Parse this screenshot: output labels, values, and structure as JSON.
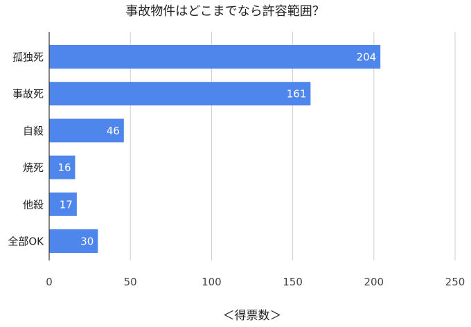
{
  "chart_data": {
    "type": "bar",
    "orientation": "horizontal",
    "title": "事故物件はどこまでなら許容範囲？",
    "xlabel": "＜得票数＞",
    "ylabel": "",
    "categories": [
      "孤独死",
      "事故死",
      "自殺",
      "焼死",
      "他殺",
      "全部OK"
    ],
    "values": [
      204,
      161,
      46,
      16,
      17,
      30
    ],
    "xlim": [
      0,
      250
    ],
    "xticks": [
      "0",
      "50",
      "100",
      "150",
      "200",
      "250"
    ],
    "grid": true,
    "legend": "none",
    "data_labels": true,
    "bar_color": "#4f86ec",
    "text_color": "#222222",
    "grid_color": "#cccccc"
  }
}
